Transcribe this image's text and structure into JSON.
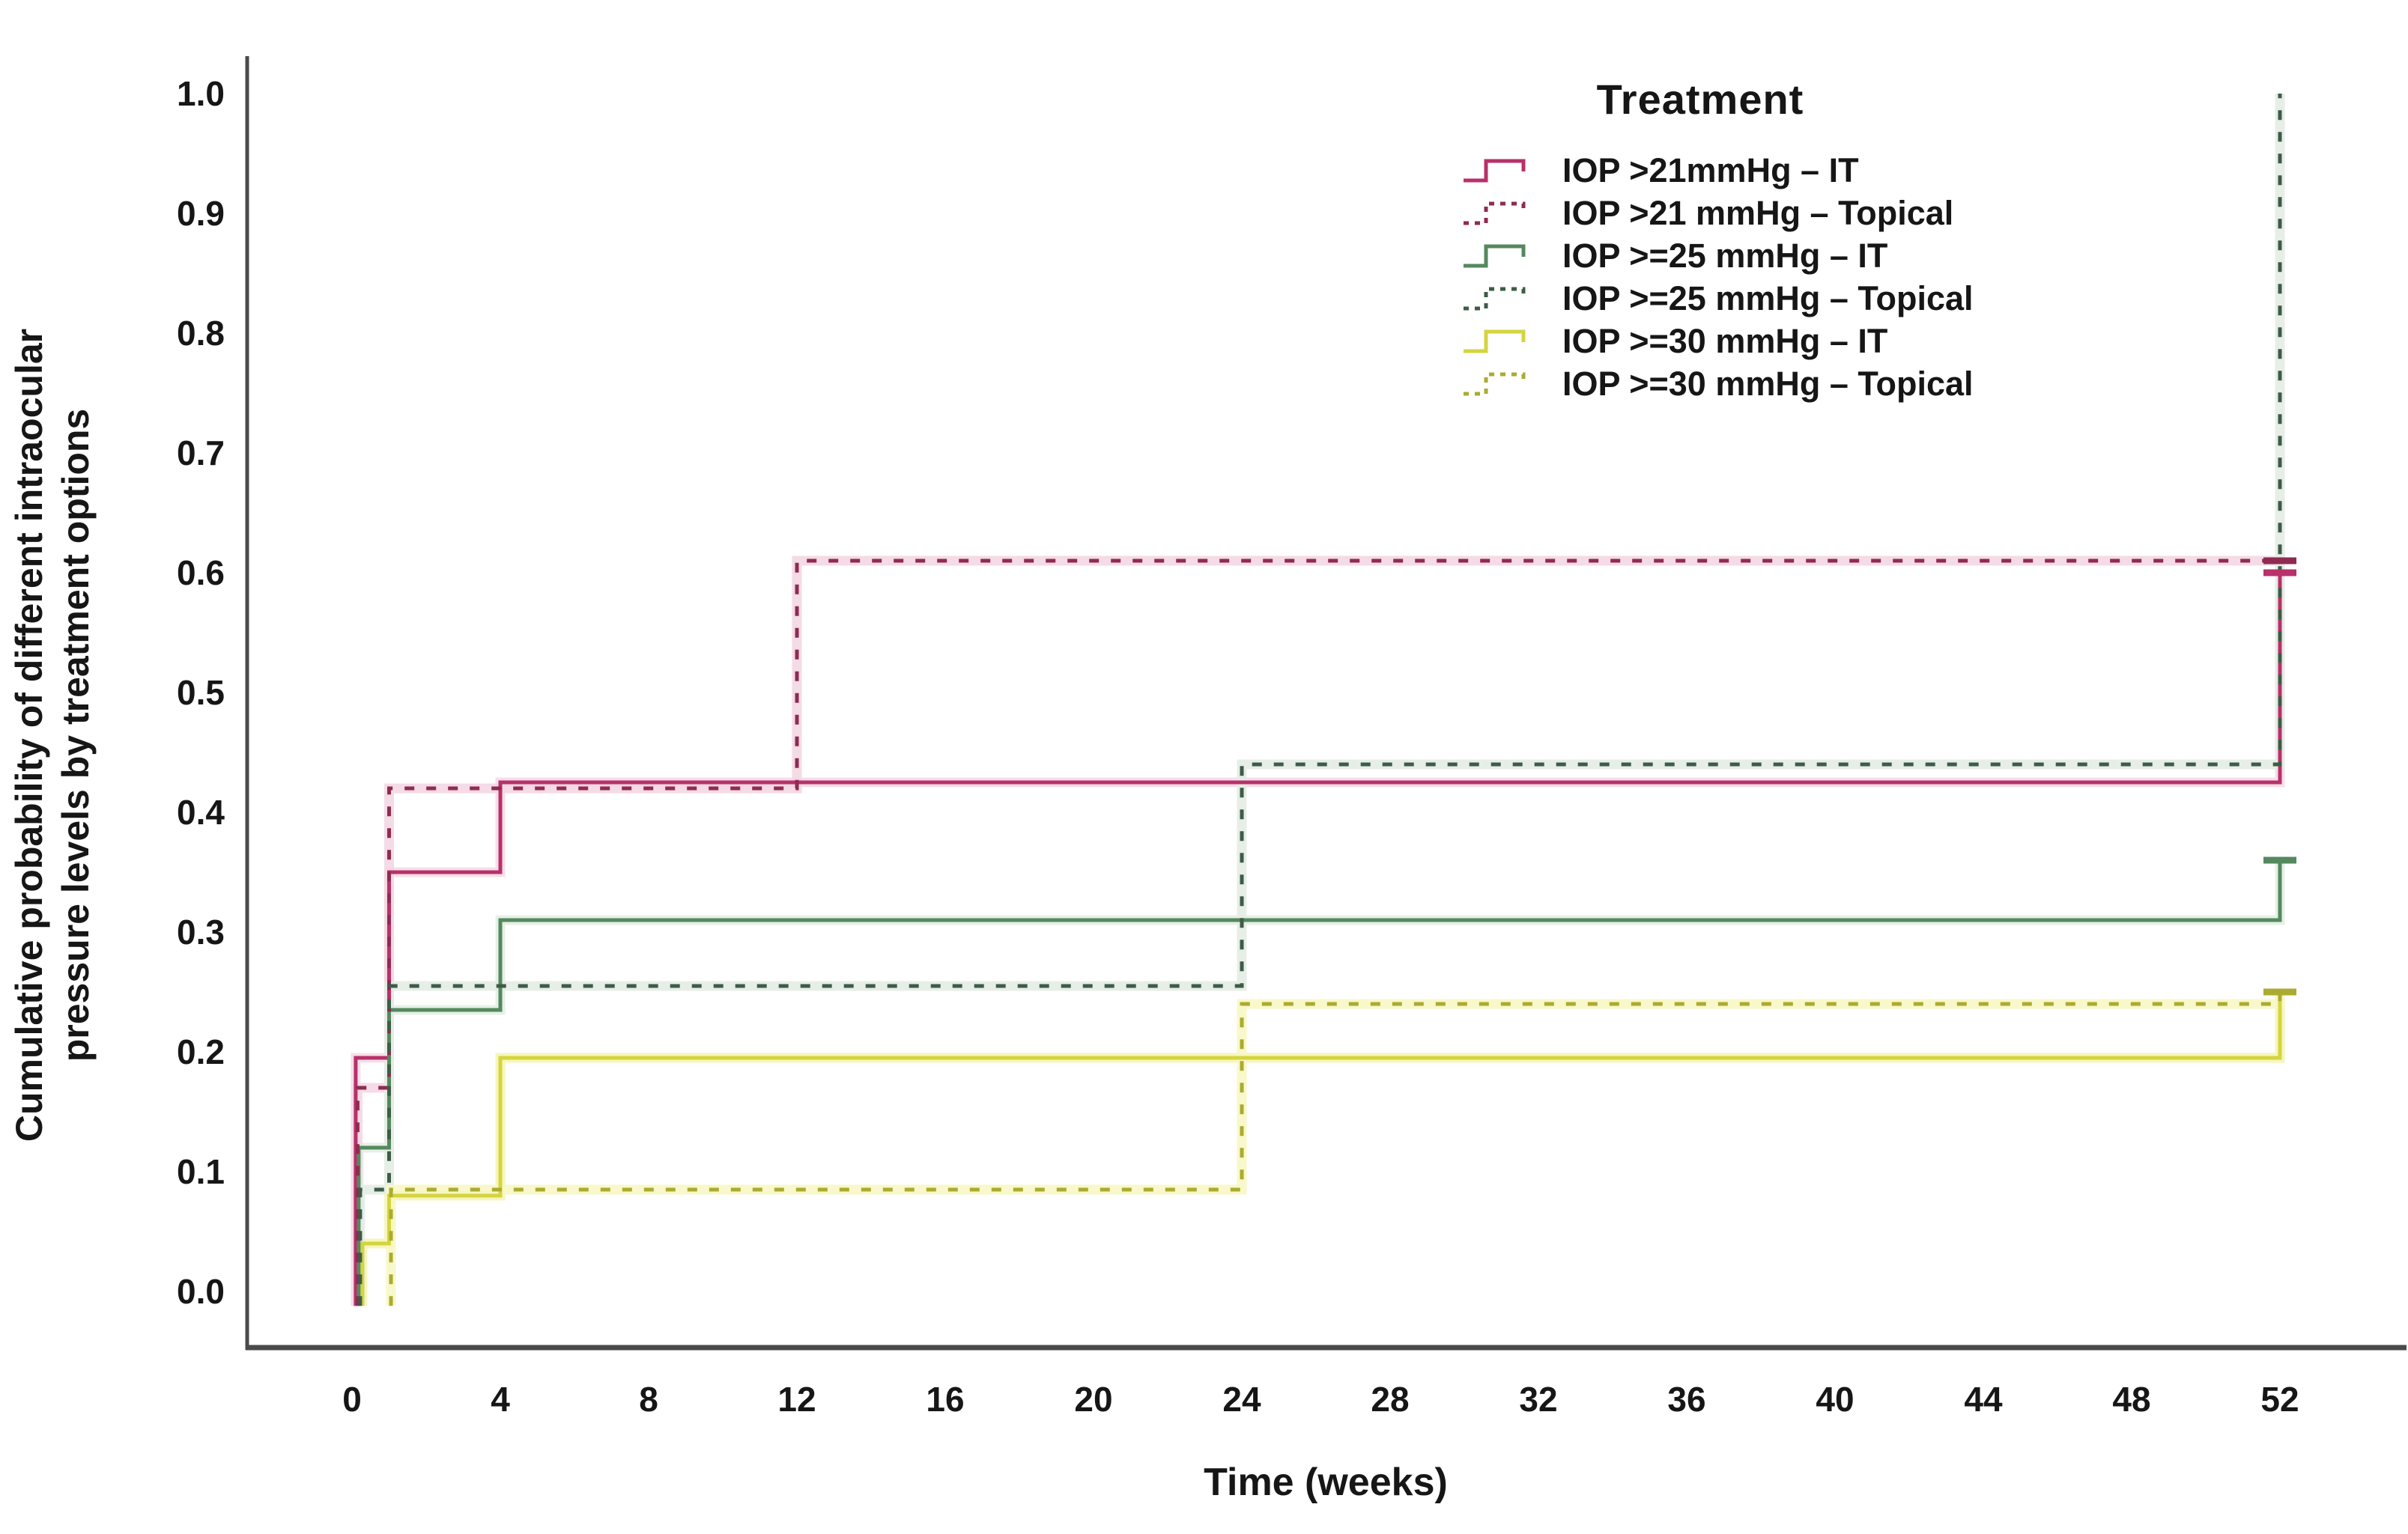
{
  "chart_data": {
    "type": "line",
    "subtype": "kaplan-meier-step",
    "title": "",
    "xlabel": "Time (weeks)",
    "ylabel": "Cumulative probability of different intraocular pressure levels by treatment options",
    "ylabel_lines": [
      "Cumulative probability of different intraocular",
      "pressure levels by treatment options"
    ],
    "xlim": [
      0,
      52
    ],
    "ylim": [
      0.0,
      1.0
    ],
    "x_ticks": [
      0,
      4,
      8,
      12,
      16,
      20,
      24,
      28,
      32,
      36,
      40,
      44,
      48,
      52
    ],
    "y_ticks": [
      0.0,
      0.1,
      0.2,
      0.3,
      0.4,
      0.5,
      0.6,
      0.7,
      0.8,
      0.9,
      1.0
    ],
    "grid": false,
    "axis_color": "#4a4a4a",
    "text_color": "#161616",
    "legend_position": "inside-top-right",
    "legend_title": "Treatment",
    "series": [
      {
        "name": "iop-gt21-it",
        "label": "IOP >21mmHg – IT",
        "style": "solid",
        "color": "#b8316a",
        "halo": "#f6dbe6",
        "end_cap": true,
        "points": [
          [
            0.1,
            -0.012
          ],
          [
            0.1,
            0.195
          ],
          [
            1,
            0.195
          ],
          [
            1,
            0.35
          ],
          [
            4,
            0.35
          ],
          [
            4,
            0.425
          ],
          [
            52,
            0.425
          ],
          [
            52,
            0.6
          ]
        ]
      },
      {
        "name": "iop-gt21-topical",
        "label": "IOP >21 mmHg – Topical",
        "style": "dashed",
        "color": "#8f2b52",
        "halo": "#f3d7e2",
        "end_cap": true,
        "points": [
          [
            0.15,
            -0.012
          ],
          [
            0.15,
            0.17
          ],
          [
            1,
            0.17
          ],
          [
            1,
            0.42
          ],
          [
            12,
            0.42
          ],
          [
            12,
            0.61
          ],
          [
            52,
            0.61
          ]
        ]
      },
      {
        "name": "iop-ge25-it",
        "label": "IOP >=25 mmHg – IT",
        "style": "solid",
        "color": "#55885e",
        "halo": "#e2efe3",
        "end_cap": true,
        "points": [
          [
            0.18,
            -0.012
          ],
          [
            0.18,
            0.12
          ],
          [
            1,
            0.12
          ],
          [
            1,
            0.235
          ],
          [
            4,
            0.235
          ],
          [
            4,
            0.31
          ],
          [
            52,
            0.31
          ],
          [
            52,
            0.36
          ]
        ]
      },
      {
        "name": "iop-ge25-topical",
        "label": "IOP >=25 mmHg – Topical",
        "style": "dashed",
        "color": "#3d5c47",
        "halo": "#e4ece4",
        "end_cap": false,
        "points": [
          [
            0.22,
            -0.012
          ],
          [
            0.22,
            0.085
          ],
          [
            1,
            0.085
          ],
          [
            1,
            0.255
          ],
          [
            24,
            0.255
          ],
          [
            24,
            0.44
          ],
          [
            52,
            0.44
          ],
          [
            52,
            1.0
          ]
        ]
      },
      {
        "name": "iop-ge30-it",
        "label": "IOP >=30 mmHg – IT",
        "style": "solid",
        "color": "#d4d441",
        "halo": "#f5f5b4",
        "end_cap": true,
        "points": [
          [
            0.28,
            -0.012
          ],
          [
            0.28,
            0.04
          ],
          [
            1,
            0.04
          ],
          [
            1,
            0.08
          ],
          [
            4,
            0.08
          ],
          [
            4,
            0.195
          ],
          [
            52,
            0.195
          ],
          [
            52,
            0.25
          ]
        ]
      },
      {
        "name": "iop-ge30-topical",
        "label": "IOP >=30 mmHg – Topical",
        "style": "dashed",
        "color": "#abab31",
        "halo": "#f7f7c4",
        "end_cap": true,
        "points": [
          [
            1.05,
            -0.012
          ],
          [
            1.05,
            0.085
          ],
          [
            24,
            0.085
          ],
          [
            24,
            0.24
          ],
          [
            52,
            0.24
          ],
          [
            52,
            0.25
          ]
        ]
      }
    ]
  }
}
